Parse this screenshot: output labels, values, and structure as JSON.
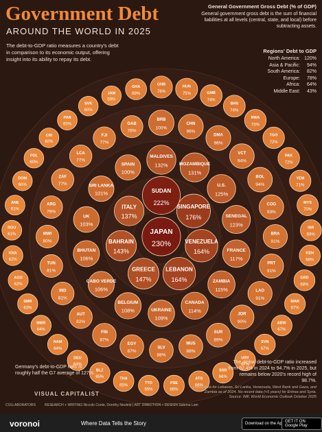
{
  "header": {
    "title": "Government Debt",
    "subtitle": "AROUND THE WORLD IN 2025",
    "intro": "The debt-to-GDP ratio measures a country's debt in comparison to its economic output, offering insight into its ability to repay its debt."
  },
  "definition": {
    "title": "General Government Gross Debt (% of GDP)",
    "text": "General government gross debt is the sum of financial liabilities at all levels (central, state, and local) before subtracting assets."
  },
  "regions": {
    "title": "Regions' Debt to GDP",
    "rows": [
      [
        "North America:",
        "120%"
      ],
      [
        "Asia & Pacific:",
        "94%"
      ],
      [
        "South America:",
        "82%"
      ],
      [
        "Europe:",
        "78%"
      ],
      [
        "Africa:",
        "64%"
      ],
      [
        "Middle East:",
        "43%"
      ]
    ]
  },
  "chart_data": {
    "type": "bubble",
    "color_scale": [
      "#e9873a",
      "#7a1a10"
    ],
    "categories": [
      "JAPAN",
      "SUDAN",
      "SINGAPORE",
      "VENEZUELA",
      "LEBANON",
      "GREECE",
      "BAHRAIN",
      "ITALY",
      "MALDIVES",
      "MOZAMBIQUE",
      "U.S.",
      "SENEGAL",
      "FRANCE",
      "ZAMBIA",
      "CANADA",
      "UKRAINE",
      "BELGIUM",
      "CABO VERDE",
      "BHUTAN",
      "UK",
      "SRI LANKA",
      "SPAIN",
      "BRB",
      "CHN",
      "DMA",
      "VCT",
      "BOL",
      "COG",
      "BRA",
      "PRT",
      "LAO",
      "JOR",
      "SUR",
      "MUS",
      "SLV",
      "EGY",
      "FIN",
      "AUT",
      "IND",
      "TUN",
      "MWI",
      "ARG",
      "ZAF",
      "LCA",
      "FJI",
      "GAB",
      "GNB",
      "HUN",
      "GMB",
      "BHS",
      "RWA",
      "TGO",
      "PAK",
      "YEM",
      "MYS",
      "ISR",
      "KEN",
      "GRD",
      "MAR",
      "ABW",
      "SVN",
      "URY",
      "SSD",
      "ATG",
      "PSE",
      "TTO",
      "THA",
      "BLZ",
      "DEU",
      "NAM",
      "MMR",
      "SMR",
      "AGO",
      "KNA",
      "ROU",
      "ANE",
      "DOM",
      "POL",
      "CRI",
      "PAN",
      "SVK",
      "JAM",
      "GHA"
    ],
    "values": [
      230,
      222,
      176,
      164,
      164,
      147,
      143,
      137,
      132,
      131,
      125,
      123,
      117,
      115,
      114,
      109,
      108,
      106,
      106,
      103,
      101,
      100,
      100,
      96,
      96,
      94,
      94,
      93,
      91,
      91,
      91,
      90,
      89,
      88,
      88,
      87,
      87,
      82,
      81,
      81,
      80,
      79,
      77,
      77,
      77,
      76,
      76,
      75,
      74,
      74,
      73,
      72,
      72,
      71,
      70,
      69,
      68,
      68,
      67,
      67,
      67,
      67,
      66,
      66,
      66,
      65,
      65,
      65,
      64,
      64,
      64,
      63,
      62,
      62,
      61,
      61,
      60,
      60,
      60,
      60,
      60,
      59,
      69
    ],
    "value_labels": [
      "230%",
      "222%",
      "176%",
      "164%",
      "164%",
      "147%",
      "143%",
      "137%",
      "132%",
      "131%",
      "125%",
      "123%",
      "117%",
      "115%",
      "114%",
      "109%",
      "108%",
      "106%",
      "106%",
      "103%",
      "101%",
      "100%",
      "100%",
      "96%",
      "96%",
      "94%",
      "94%",
      "93%",
      "91%",
      "91%",
      "91%",
      "90%",
      "89%",
      "88%",
      "88%",
      "87%",
      "87%",
      "82%",
      "81%",
      "81%",
      "80%",
      "79%",
      "77%",
      "77%",
      "77%",
      "76%",
      "76%",
      "75%",
      "74%",
      "74%",
      "73%",
      "72%",
      "72%",
      "71%",
      "70%",
      "69%",
      "68%",
      "68%",
      "67%",
      "67%",
      "67%",
      "67%",
      "66%",
      "66%",
      "66%",
      "65%",
      "65%",
      "65%",
      "64%",
      "64%",
      "64%",
      "63%",
      "62%",
      "62%",
      "61%",
      "61%",
      "60%",
      "60%",
      "60%",
      "60%",
      "60%",
      "59%",
      "69%"
    ]
  },
  "notes": {
    "germany": "Germany's debt-to-GDP ratio is roughly half the G7 average of 127%.",
    "global": "The global debt-to-GDP ratio increased from 92.4% in 2024 to 94.7% in 2025, but remains below 2020's record high of 98.7%.",
    "data": "Latest data for Lebanon, Sri Lanka, Venezuela, West Bank and Gaza, and Zambia as of 2024. No recent data (<5 years) for Eritrea and Syria.",
    "source": "Source: IMF, World Economic Outlook October 2025"
  },
  "credits": {
    "collaborators": "COLLABORATORS",
    "team": "RESEARCH + WRITING Niccolo Conte, Dorothy Neufeld | ART DIRECTION + DESIGN Sabrina Lam",
    "publisher": "VISUAL CAPITALIST"
  },
  "footer": {
    "brand": "voronoi",
    "tagline": "Where Data Tells the Story",
    "apple": "Download on the App Store",
    "google": "GET IT ON Google Play"
  }
}
